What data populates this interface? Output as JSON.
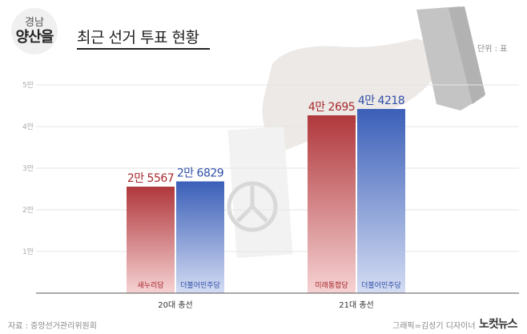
{
  "header": {
    "region_top": "경남",
    "region_main": "양산을",
    "title": "최근 선거 투표 현황"
  },
  "unit_label": "단위 : 표",
  "footer": {
    "source": "자료 : 중앙선거관리위원회",
    "credit": "그래픽=김성기 디자이너",
    "logo": "노컷뉴스"
  },
  "chart_data": {
    "type": "bar",
    "categories": [
      "20대 총선",
      "21대 총선"
    ],
    "bars": [
      {
        "category": "20대 총선",
        "party": "새누리당",
        "value": 25567,
        "label": "2만 5567",
        "color": "red"
      },
      {
        "category": "20대 총선",
        "party": "더불어민주당",
        "value": 26829,
        "label": "2만 6829",
        "color": "blue"
      },
      {
        "category": "21대 총선",
        "party": "미래통합당",
        "value": 42695,
        "label": "4만 2695",
        "color": "red"
      },
      {
        "category": "21대 총선",
        "party": "더불어민주당",
        "value": 44218,
        "label": "4만 4218",
        "color": "blue"
      }
    ],
    "yticks": [
      {
        "value": 10000,
        "label": "1만"
      },
      {
        "value": 20000,
        "label": "2만"
      },
      {
        "value": 30000,
        "label": "3만"
      },
      {
        "value": 40000,
        "label": "4만"
      },
      {
        "value": 50000,
        "label": "5만"
      }
    ],
    "ylim": [
      0,
      50000
    ],
    "grid": true,
    "colors": {
      "red_top": "#b0383c",
      "red_bottom": "#f6d2d3",
      "blue_top": "#3b5fb8",
      "blue_bottom": "#d4dcf3",
      "red_text": "#a8282d",
      "blue_text": "#2f4fa8"
    }
  }
}
